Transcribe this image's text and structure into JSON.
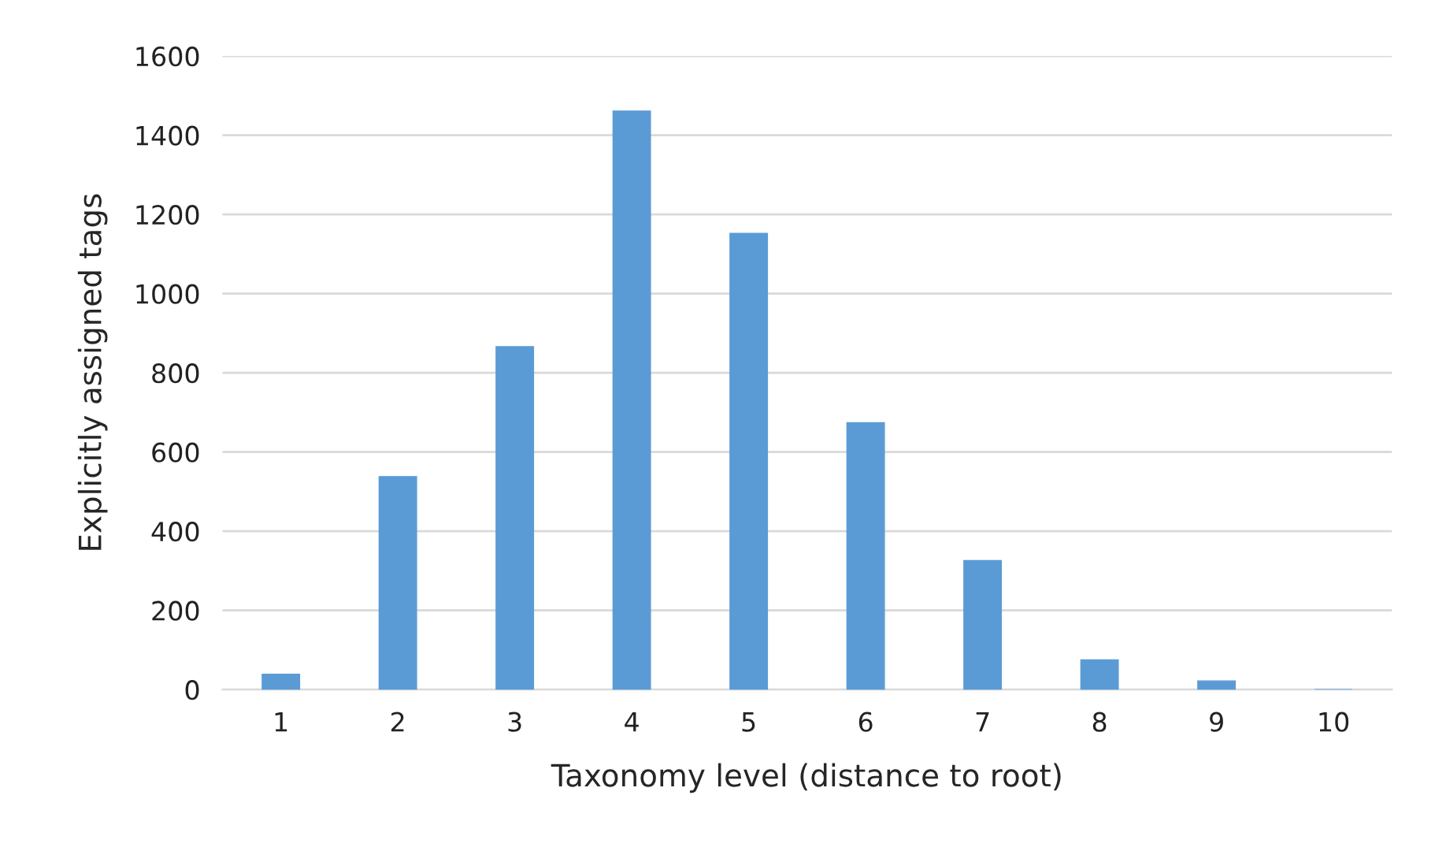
{
  "chart_data": {
    "type": "bar",
    "xlabel": "Taxonomy level (distance to root)",
    "ylabel": "Explicitly assigned tags",
    "categories": [
      "1",
      "2",
      "3",
      "4",
      "5",
      "6",
      "7",
      "8",
      "9",
      "10"
    ],
    "values": [
      39,
      538,
      866,
      1461,
      1152,
      674,
      326,
      75,
      22,
      0
    ],
    "color": "#5b9bd5",
    "ylim": [
      0,
      1600
    ],
    "yticks": [
      0,
      200,
      400,
      600,
      800,
      1000,
      1200,
      1400,
      1600
    ],
    "grid": "y"
  }
}
